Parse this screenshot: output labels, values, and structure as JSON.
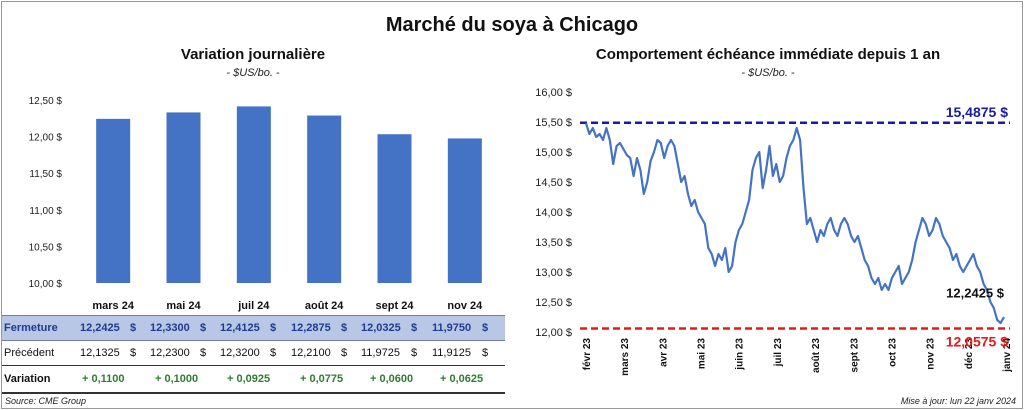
{
  "title": "Marché du soya à Chicago",
  "left": {
    "subtitle": "Variation journalière",
    "unit": "- $US/bo. -"
  },
  "right": {
    "subtitle": "Comportement échéance immédiate depuis 1 an",
    "unit": "- $US/bo. -"
  },
  "table": {
    "rows": [
      {
        "label": "Fermeture",
        "values": [
          "12,2425",
          "12,3300",
          "12,4125",
          "12,2875",
          "12,0325",
          "11,9750"
        ],
        "unit": "$"
      },
      {
        "label": "Précédent",
        "values": [
          "12,1325",
          "12,2300",
          "12,3200",
          "12,2100",
          "11,9725",
          "11,9125"
        ],
        "unit": "$"
      },
      {
        "label": "Variation",
        "values": [
          "+ 0,1100",
          "+ 0,1000",
          "+ 0,0925",
          "+ 0,0775",
          "+ 0,0600",
          "+ 0,0625"
        ],
        "unit": ""
      }
    ]
  },
  "footer": {
    "source": "Source: CME Group",
    "updated": "Mise à jour: lun 22 janv 2024"
  },
  "colors": {
    "bar": "#4472c4",
    "line": "#4472c4",
    "high": "#1a1aa6",
    "low": "#e31a1c"
  },
  "chart_data": [
    {
      "type": "bar",
      "categories": [
        "mars 24",
        "mai 24",
        "juil 24",
        "août 24",
        "sept 24",
        "nov 24"
      ],
      "values": [
        12.2425,
        12.33,
        12.4125,
        12.2875,
        12.0325,
        11.975
      ],
      "ylim": [
        10.0,
        12.5
      ],
      "yticks": [
        "10,00 $",
        "10,50 $",
        "11,00 $",
        "11,50 $",
        "12,00 $",
        "12,50 $"
      ],
      "grid": false
    },
    {
      "type": "line",
      "x_labels": [
        "févr 23",
        "mars 23",
        "avr 23",
        "mai 23",
        "juin 23",
        "juil 23",
        "août 23",
        "sept 23",
        "oct 23",
        "nov 23",
        "déc 23",
        "janv 24"
      ],
      "ylim": [
        12.0,
        16.0
      ],
      "yticks": [
        "12,00 $",
        "12,50 $",
        "13,00 $",
        "13,50 $",
        "14,00 $",
        "14,50 $",
        "15,00 $",
        "15,50 $",
        "16,00 $"
      ],
      "values": [
        15.48,
        15.3,
        15.4,
        15.25,
        15.3,
        15.2,
        15.4,
        15.2,
        14.8,
        15.1,
        15.15,
        15.05,
        14.95,
        14.9,
        14.6,
        14.9,
        14.7,
        14.3,
        14.5,
        14.85,
        15.0,
        15.2,
        15.15,
        14.9,
        15.1,
        15.2,
        15.1,
        14.8,
        14.5,
        14.6,
        14.3,
        14.1,
        14.2,
        14.0,
        13.9,
        13.8,
        13.4,
        13.3,
        13.1,
        13.3,
        13.2,
        13.4,
        13.0,
        13.1,
        13.5,
        13.7,
        13.8,
        14.0,
        14.2,
        14.7,
        14.9,
        15.0,
        14.4,
        14.7,
        15.1,
        14.6,
        14.8,
        14.5,
        14.6,
        14.9,
        15.1,
        15.2,
        15.4,
        15.2,
        14.4,
        13.8,
        13.9,
        13.7,
        13.5,
        13.7,
        13.6,
        13.8,
        13.9,
        13.7,
        13.6,
        13.8,
        13.9,
        13.8,
        13.6,
        13.5,
        13.6,
        13.4,
        13.2,
        13.1,
        12.9,
        12.8,
        12.9,
        12.7,
        12.8,
        12.7,
        12.9,
        13.0,
        13.1,
        12.8,
        12.9,
        13.0,
        13.2,
        13.5,
        13.7,
        13.9,
        13.8,
        13.6,
        13.7,
        13.9,
        13.8,
        13.6,
        13.5,
        13.4,
        13.2,
        13.3,
        13.1,
        13.0,
        13.1,
        13.2,
        13.3,
        13.1,
        13.0,
        12.8,
        12.7,
        12.5,
        12.4,
        12.2,
        12.15,
        12.25
      ],
      "annotations": [
        {
          "label": "15,4875 $",
          "value": 15.4875,
          "kind": "high"
        },
        {
          "label": "12,2425 $",
          "value": 12.2425,
          "kind": "last"
        },
        {
          "label": "12,0575 $",
          "value": 12.0575,
          "kind": "low"
        }
      ],
      "grid": false
    }
  ]
}
